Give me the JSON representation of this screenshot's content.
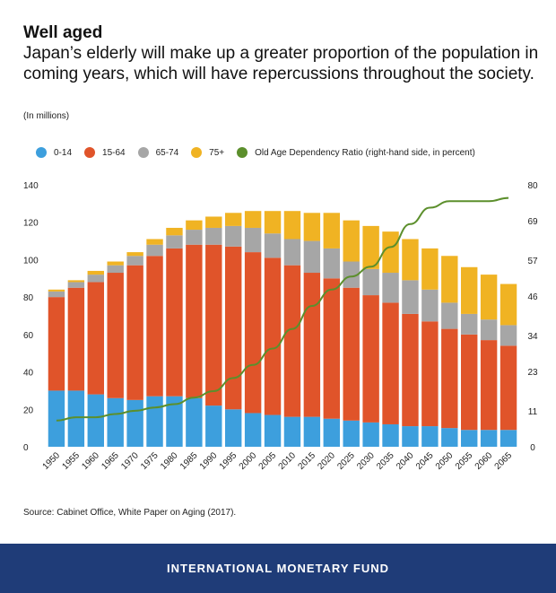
{
  "header": {
    "title": "Well aged",
    "subtitle": "Japan’s elderly will make up a greater proportion of the population in coming years, which will have repercussions throughout the society.",
    "unit_note": "(In millions)"
  },
  "legend": [
    {
      "label": "0-14",
      "color": "#3d9fdd"
    },
    {
      "label": "15-64",
      "color": "#e0542a"
    },
    {
      "label": "65-74",
      "color": "#a6a6a6"
    },
    {
      "label": "75+",
      "color": "#f0b323"
    },
    {
      "label": "Old Age Dependency Ratio (right-hand side, in percent)",
      "color": "#5c8f2c"
    }
  ],
  "chart_data": {
    "type": "bar",
    "stacked": true,
    "categories": [
      "1950",
      "1955",
      "1960",
      "1965",
      "1970",
      "1975",
      "1980",
      "1985",
      "1990",
      "1995",
      "2000",
      "2005",
      "2010",
      "2015",
      "2020",
      "2025",
      "2030",
      "2035",
      "2040",
      "2045",
      "2050",
      "2055",
      "2060",
      "2065"
    ],
    "series": [
      {
        "name": "0-14",
        "color": "#3d9fdd",
        "values": [
          30,
          30,
          28,
          26,
          25,
          27,
          27,
          26,
          22,
          20,
          18,
          17,
          16,
          16,
          15,
          14,
          13,
          12,
          11,
          11,
          10,
          9,
          9,
          9
        ]
      },
      {
        "name": "15-64",
        "color": "#e0542a",
        "values": [
          50,
          55,
          60,
          67,
          72,
          75,
          79,
          82,
          86,
          87,
          86,
          84,
          81,
          77,
          75,
          71,
          68,
          65,
          60,
          56,
          53,
          51,
          48,
          45
        ]
      },
      {
        "name": "65-74",
        "color": "#a6a6a6",
        "values": [
          3,
          3,
          4,
          4,
          5,
          6,
          7,
          8,
          9,
          11,
          13,
          13,
          14,
          17,
          16,
          14,
          14,
          16,
          18,
          17,
          14,
          11,
          11,
          11
        ]
      },
      {
        "name": "75+",
        "color": "#f0b323",
        "values": [
          1,
          1,
          2,
          2,
          2,
          3,
          4,
          5,
          6,
          7,
          9,
          12,
          15,
          15,
          19,
          22,
          23,
          22,
          22,
          22,
          25,
          25,
          24,
          22
        ]
      }
    ],
    "line_series": {
      "name": "Old Age Dependency Ratio (right-hand side, in percent)",
      "color": "#5c8f2c",
      "values": [
        8,
        9,
        9,
        10,
        11,
        12,
        13,
        15,
        17,
        21,
        25,
        30,
        36,
        43,
        48,
        52,
        55,
        61,
        68,
        73,
        75,
        75,
        75,
        76
      ]
    },
    "y_left": {
      "min": 0,
      "max": 140,
      "ticks": [
        0,
        20,
        40,
        60,
        80,
        100,
        120,
        140
      ]
    },
    "y_right": {
      "min": 0,
      "max": 80,
      "ticks": [
        "0",
        "11",
        "23",
        "34",
        "46",
        "57",
        "69",
        "80"
      ]
    },
    "grid": false,
    "legend_position": "top"
  },
  "source": "Source:  Cabinet Office, White Paper on Aging (2017).",
  "footer": "INTERNATIONAL MONETARY FUND"
}
